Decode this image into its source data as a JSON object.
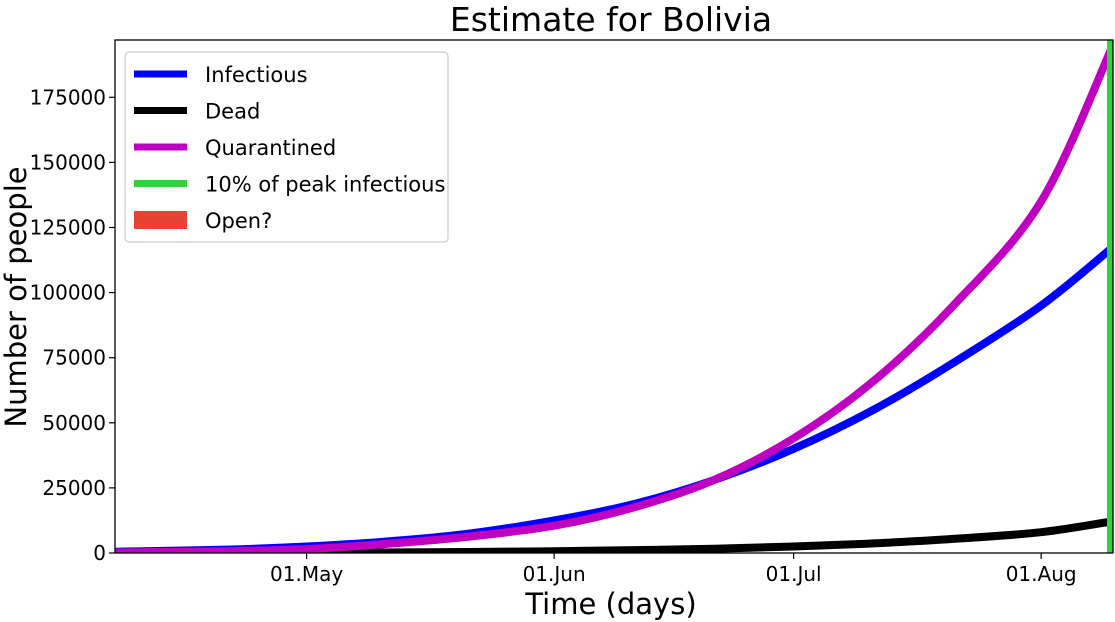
{
  "chart_data": {
    "type": "line",
    "title": "Estimate for Bolivia",
    "xlabel": "Time (days)",
    "ylabel": "Number of people",
    "x_range": [
      "2020-04-07",
      "2020-08-10"
    ],
    "ylim": [
      0,
      197000
    ],
    "x_ticks": [
      {
        "date": "2020-05-01",
        "label": "01.May"
      },
      {
        "date": "2020-06-01",
        "label": "01.Jun"
      },
      {
        "date": "2020-07-01",
        "label": "01.Jul"
      },
      {
        "date": "2020-08-01",
        "label": "01.Aug"
      }
    ],
    "y_ticks": [
      0,
      25000,
      50000,
      75000,
      100000,
      125000,
      150000,
      175000
    ],
    "y_tick_labels": [
      "0",
      "25000",
      "50000",
      "75000",
      "100000",
      "125000",
      "150000",
      "175000"
    ],
    "grid": false,
    "legend_position": "top-left",
    "series": [
      {
        "name": "Infectious",
        "color": "#0000ff",
        "points": [
          [
            "2020-04-07",
            500
          ],
          [
            "2020-04-21",
            1300
          ],
          [
            "2020-05-01",
            2500
          ],
          [
            "2020-05-11",
            4400
          ],
          [
            "2020-05-21",
            7300
          ],
          [
            "2020-06-01",
            12500
          ],
          [
            "2020-06-11",
            18800
          ],
          [
            "2020-06-21",
            28000
          ],
          [
            "2020-07-01",
            40000
          ],
          [
            "2020-07-11",
            55000
          ],
          [
            "2020-07-21",
            73000
          ],
          [
            "2020-08-01",
            95000
          ],
          [
            "2020-08-10",
            117500
          ]
        ]
      },
      {
        "name": "Dead",
        "color": "#000000",
        "points": [
          [
            "2020-04-07",
            0
          ],
          [
            "2020-05-01",
            0
          ],
          [
            "2020-05-21",
            400
          ],
          [
            "2020-06-01",
            700
          ],
          [
            "2020-06-11",
            1100
          ],
          [
            "2020-06-21",
            1600
          ],
          [
            "2020-07-01",
            2500
          ],
          [
            "2020-07-11",
            3700
          ],
          [
            "2020-07-21",
            5400
          ],
          [
            "2020-08-01",
            8000
          ],
          [
            "2020-08-10",
            12200
          ]
        ]
      },
      {
        "name": "Quarantined",
        "color": "#c000c0",
        "points": [
          [
            "2020-04-07",
            200
          ],
          [
            "2020-04-21",
            700
          ],
          [
            "2020-05-01",
            1500
          ],
          [
            "2020-05-11",
            3500
          ],
          [
            "2020-05-21",
            6200
          ],
          [
            "2020-06-01",
            10500
          ],
          [
            "2020-06-11",
            17500
          ],
          [
            "2020-06-21",
            28000
          ],
          [
            "2020-07-01",
            44000
          ],
          [
            "2020-07-11",
            66000
          ],
          [
            "2020-07-21",
            95000
          ],
          [
            "2020-08-01",
            135000
          ],
          [
            "2020-08-10",
            195000
          ]
        ]
      }
    ],
    "vertical_line": {
      "name": "10% of peak infectious",
      "color": "#2fd33a",
      "date": "2020-08-10"
    },
    "legend": [
      {
        "label": "Infectious",
        "color": "#0000ff",
        "style": "line"
      },
      {
        "label": "Dead",
        "color": "#000000",
        "style": "line"
      },
      {
        "label": "Quarantined",
        "color": "#c000c0",
        "style": "line"
      },
      {
        "label": "10% of peak infectious",
        "color": "#2fd33a",
        "style": "line"
      },
      {
        "label": "Open?",
        "color": "#e84234",
        "style": "patch"
      }
    ]
  }
}
